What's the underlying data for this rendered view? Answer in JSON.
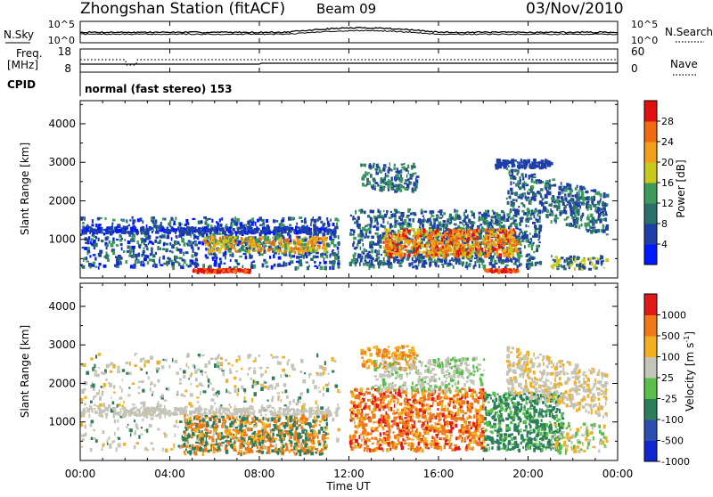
{
  "header": {
    "station": "Zhongshan Station (fitACF)",
    "beam": "Beam 09",
    "date": "03/Nov/2010"
  },
  "top_panel": {
    "left_label": "N.Sky",
    "right_label": "N.Search",
    "left_ticks": [
      "10^5",
      "10^0"
    ],
    "right_ticks": [
      "10^5",
      "10^0"
    ]
  },
  "freq_panel": {
    "left_label_1": "Freq.",
    "left_label_2": "[MHz]",
    "cpid_label": "CPID",
    "right_label": "Nave",
    "left_ticks": [
      "18",
      "8"
    ],
    "right_ticks": [
      "60",
      "0"
    ]
  },
  "cpid_text": "normal (fast stereo) 153",
  "chart_data": [
    {
      "type": "heatmap",
      "name": "power",
      "ylabel": "Slant Range [km]",
      "yticks": [
        "1000",
        "2000",
        "3000",
        "4000"
      ],
      "ylim": [
        0,
        4600
      ],
      "colorbar": {
        "label": "Power [dB]",
        "ticks": [
          "4",
          "8",
          "12",
          "16",
          "20",
          "24",
          "28"
        ],
        "colors": [
          "#0018ff",
          "#1f3fa8",
          "#2a6f6a",
          "#3d9a5a",
          "#c8c81e",
          "#f0a018",
          "#f06a10",
          "#e01010"
        ]
      }
    },
    {
      "type": "heatmap",
      "name": "velocity",
      "ylabel": "Slant Range [km]",
      "yticks": [
        "1000",
        "2000",
        "3000",
        "4000"
      ],
      "ylim": [
        0,
        4600
      ],
      "colorbar": {
        "label_main": "Velocity",
        "label_unit": "[m s",
        "label_exp": "-1",
        "label_close": "]",
        "ticks": [
          "1000",
          "500",
          "100",
          "25",
          "-25",
          "-100",
          "-500",
          "-1000"
        ],
        "colors": [
          "#1028d0",
          "#2a4fb0",
          "#2c7d5a",
          "#58c04a",
          "#c4c4b8",
          "#f0b020",
          "#f07818",
          "#e01818"
        ]
      }
    }
  ],
  "x_axis": {
    "ticks": [
      "00:00",
      "04:00",
      "08:00",
      "12:00",
      "16:00",
      "20:00",
      "00:00"
    ],
    "label": "Time UT"
  }
}
